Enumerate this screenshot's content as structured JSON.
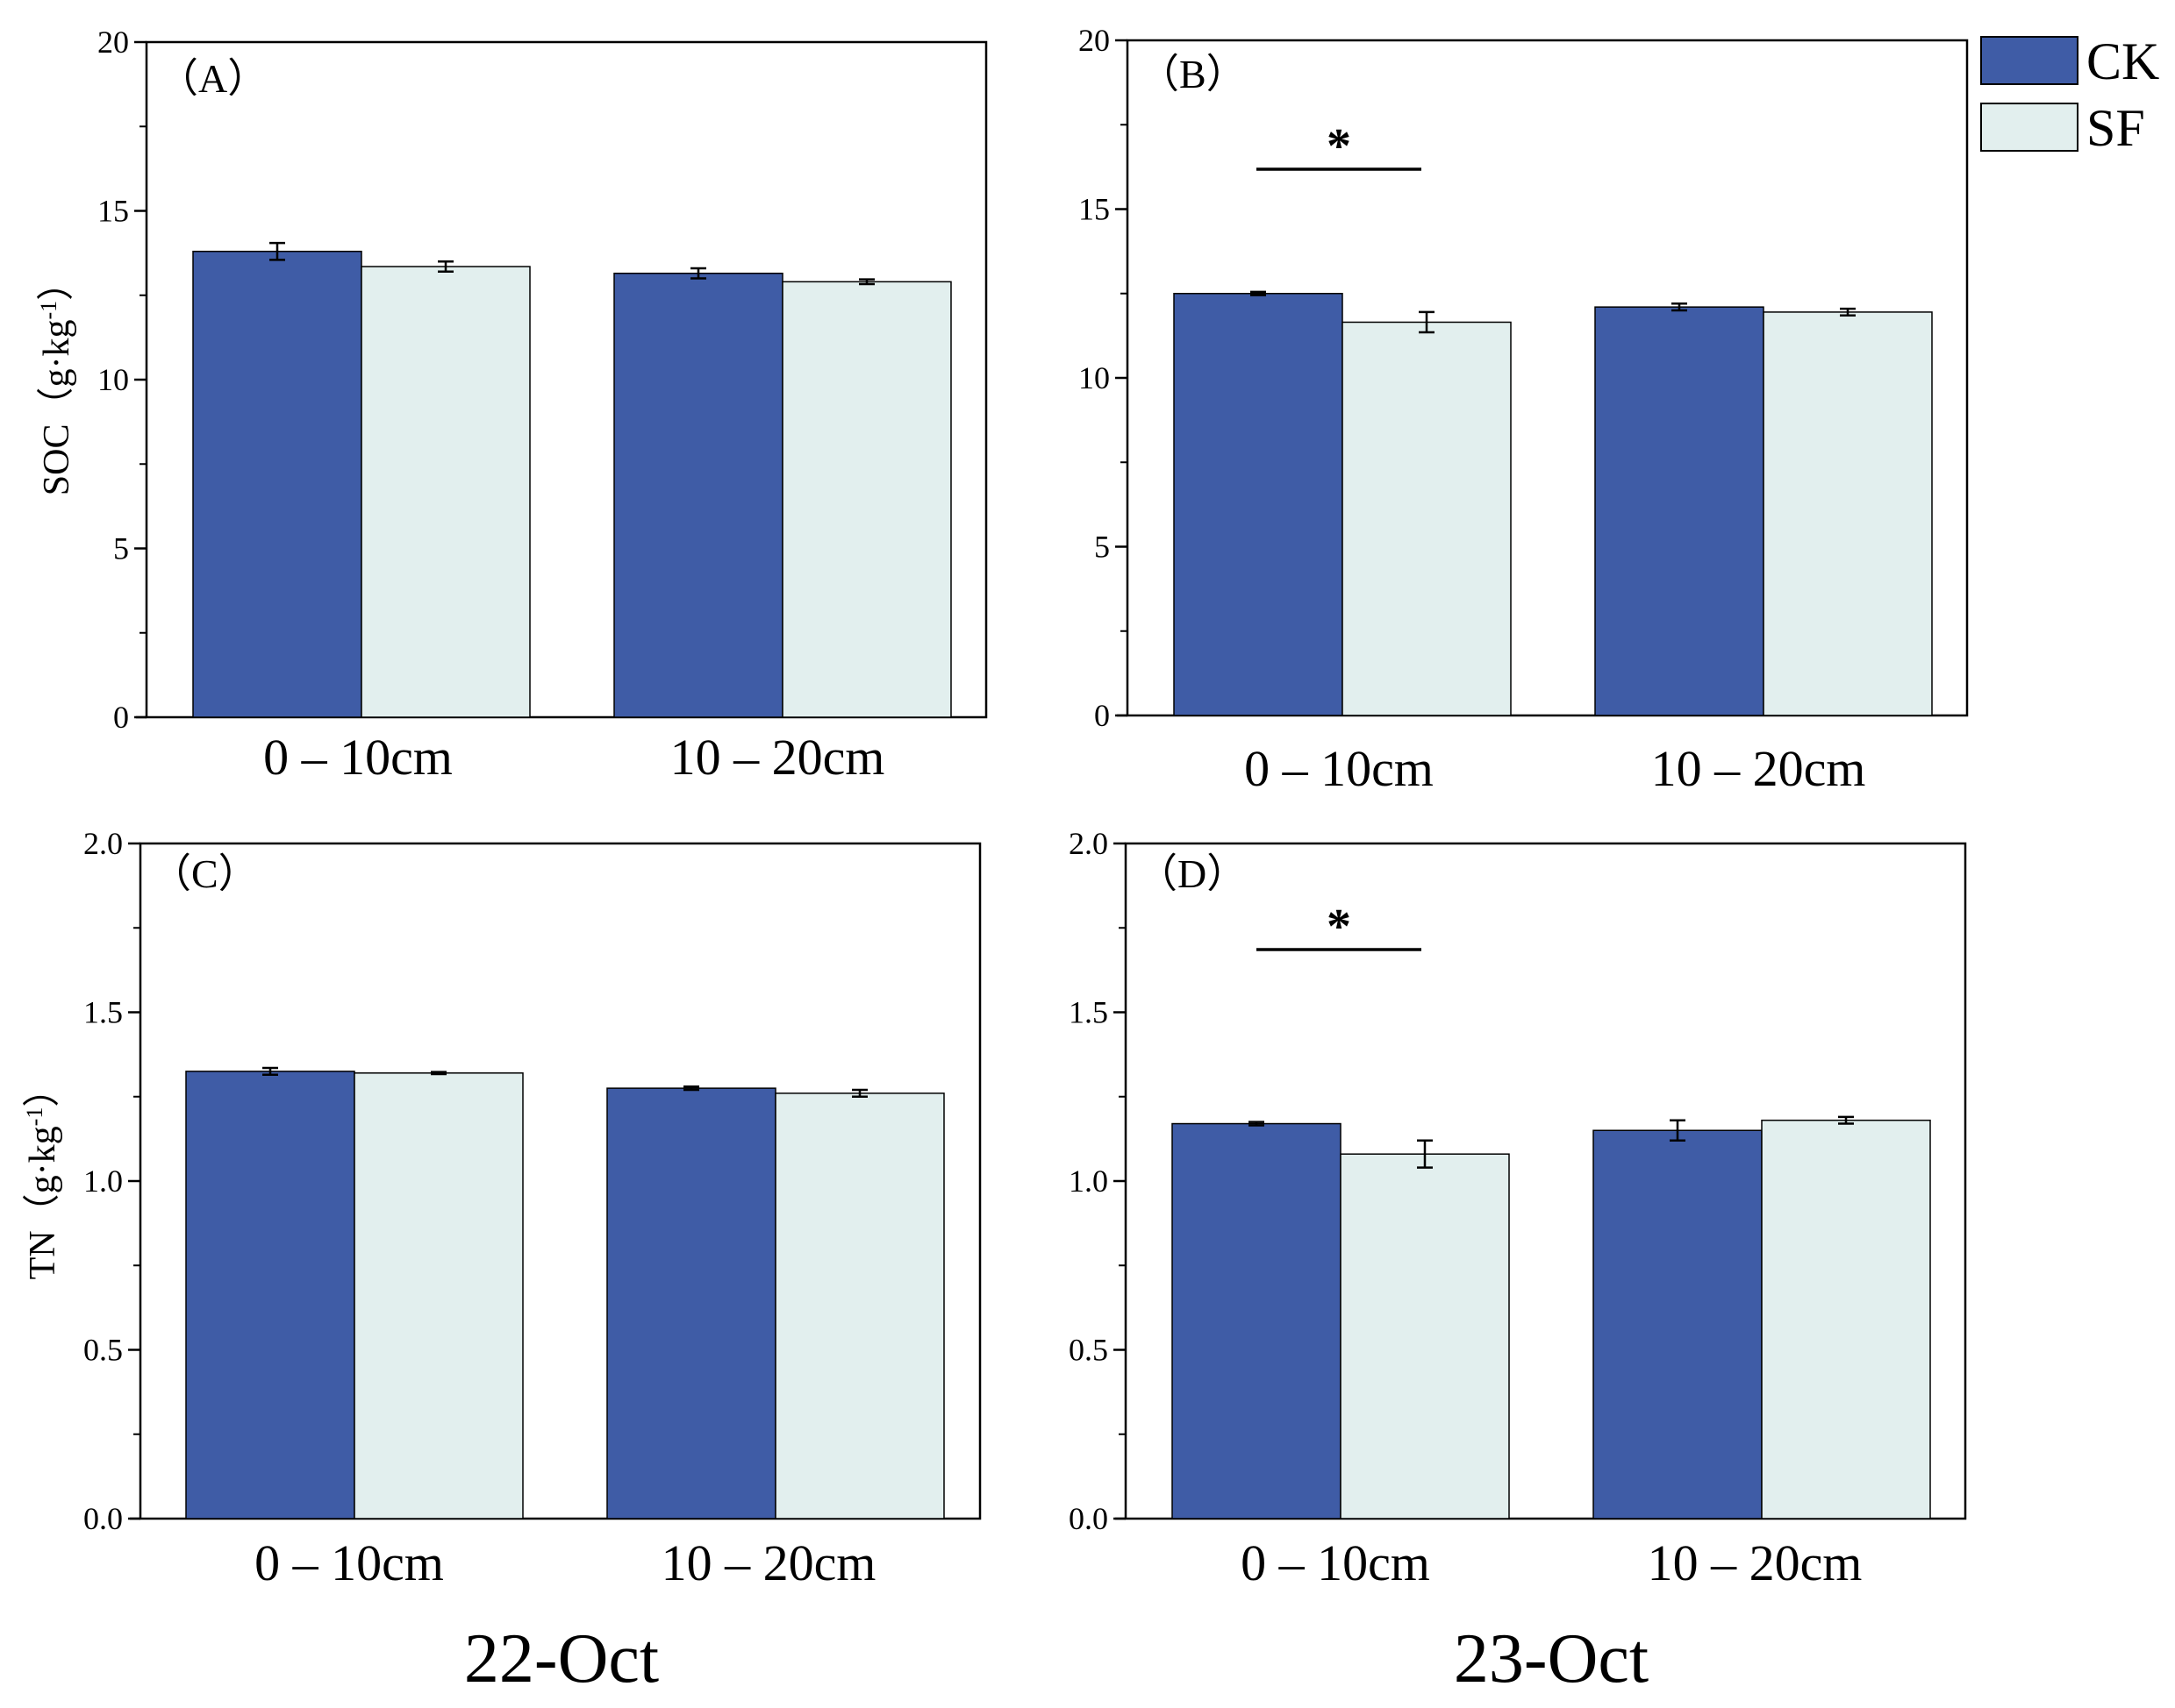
{
  "colors": {
    "CK": "#3f5ca6",
    "SF": "#e2efee"
  },
  "legend": [
    {
      "key": "CK",
      "label": "CK"
    },
    {
      "key": "SF",
      "label": "SF"
    }
  ],
  "date_labels": [
    "22-Oct",
    "23-Oct"
  ],
  "chart_data": [
    {
      "type": "bar",
      "panel_label": "（A）",
      "ylabel_main": "SOC",
      "ylabel_unit": "（g·kg",
      "ylabel_exp": "-1",
      "ylabel_close": "）",
      "categories": [
        "0 – 10cm",
        "10 – 20cm"
      ],
      "series": [
        {
          "name": "CK",
          "values": [
            13.8,
            13.15
          ],
          "errors": [
            0.25,
            0.15
          ]
        },
        {
          "name": "SF",
          "values": [
            13.35,
            12.9
          ],
          "errors": [
            0.15,
            0.07
          ]
        }
      ],
      "ylim": [
        0,
        20
      ],
      "yticks": [
        "0",
        "5",
        "10",
        "15",
        "20"
      ],
      "significance": ""
    },
    {
      "type": "bar",
      "panel_label": "（B）",
      "ylabel_main": "",
      "ylabel_unit": "",
      "ylabel_exp": "",
      "ylabel_close": "",
      "categories": [
        "0 – 10cm",
        "10 – 20cm"
      ],
      "series": [
        {
          "name": "CK",
          "values": [
            12.5,
            12.1
          ],
          "errors": [
            0.05,
            0.1
          ]
        },
        {
          "name": "SF",
          "values": [
            11.65,
            11.95
          ],
          "errors": [
            0.3,
            0.1
          ]
        }
      ],
      "ylim": [
        0,
        20
      ],
      "yticks": [
        "0",
        "5",
        "10",
        "15",
        "20"
      ],
      "significance": "*"
    },
    {
      "type": "bar",
      "panel_label": "（C）",
      "ylabel_main": "TN",
      "ylabel_unit": "（g·kg",
      "ylabel_exp": "-1",
      "ylabel_close": "）",
      "categories": [
        "0 – 10cm",
        "10 – 20cm"
      ],
      "series": [
        {
          "name": "CK",
          "values": [
            1.325,
            1.275
          ],
          "errors": [
            0.01,
            0.005
          ]
        },
        {
          "name": "SF",
          "values": [
            1.32,
            1.26
          ],
          "errors": [
            0.003,
            0.01
          ]
        }
      ],
      "ylim": [
        0,
        2.0
      ],
      "yticks": [
        "0.0",
        "0.5",
        "1.0",
        "1.5",
        "2.0"
      ],
      "significance": ""
    },
    {
      "type": "bar",
      "panel_label": "（D）",
      "ylabel_main": "",
      "ylabel_unit": "",
      "ylabel_exp": "",
      "ylabel_close": "",
      "categories": [
        "0 – 10cm",
        "10 – 20cm"
      ],
      "series": [
        {
          "name": "CK",
          "values": [
            1.17,
            1.15
          ],
          "errors": [
            0.005,
            0.03
          ]
        },
        {
          "name": "SF",
          "values": [
            1.08,
            1.18
          ],
          "errors": [
            0.04,
            0.01
          ]
        }
      ],
      "ylim": [
        0,
        2.0
      ],
      "yticks": [
        "0.0",
        "0.5",
        "1.0",
        "1.5",
        "2.0"
      ],
      "significance": "*"
    }
  ]
}
